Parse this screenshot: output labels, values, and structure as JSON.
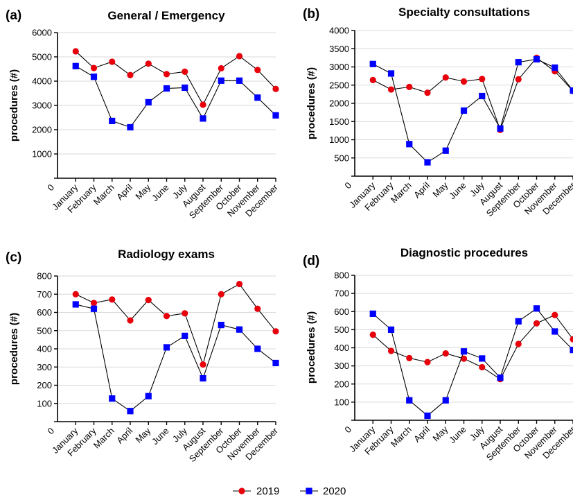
{
  "colors": {
    "series_2019": "#e8000b",
    "series_2020": "#0000ff",
    "axis": "#000000",
    "grid": "#d9d9d9"
  },
  "legend": {
    "items": [
      {
        "label": "2019",
        "marker": "circle",
        "color": "#e8000b"
      },
      {
        "label": "2020",
        "marker": "square",
        "color": "#0000ff"
      }
    ]
  },
  "chart_data": [
    {
      "type": "line",
      "panel": "(a)",
      "title": "General / Emergency",
      "ylabel": "procedures (#)",
      "xlabel": "",
      "ylim": [
        0,
        6000
      ],
      "yticks": [
        0,
        1000,
        2000,
        3000,
        4000,
        5000,
        6000
      ],
      "categories": [
        "January",
        "February",
        "March",
        "April",
        "May",
        "June",
        "July",
        "August",
        "September",
        "October",
        "November",
        "December"
      ],
      "series": [
        {
          "name": "2019",
          "values": [
            5230,
            4540,
            4800,
            4250,
            4720,
            4290,
            4390,
            3030,
            4530,
            5030,
            4460,
            3680
          ]
        },
        {
          "name": "2020",
          "values": [
            4620,
            4180,
            2360,
            2100,
            3130,
            3700,
            3730,
            2460,
            4020,
            4020,
            3320,
            2590
          ]
        }
      ]
    },
    {
      "type": "line",
      "panel": "(b)",
      "title": "Specialty consultations",
      "ylabel": "procedures (#)",
      "xlabel": "",
      "ylim": [
        0,
        4000
      ],
      "yticks": [
        0,
        500,
        1000,
        1500,
        2000,
        2500,
        3000,
        3500,
        4000
      ],
      "categories": [
        "January",
        "February",
        "March",
        "April",
        "May",
        "June",
        "July",
        "August",
        "September",
        "October",
        "November",
        "December"
      ],
      "series": [
        {
          "name": "2019",
          "values": [
            2640,
            2380,
            2450,
            2290,
            2710,
            2600,
            2670,
            1270,
            2660,
            3250,
            2880,
            2340
          ]
        },
        {
          "name": "2020",
          "values": [
            3080,
            2820,
            880,
            380,
            700,
            1800,
            2200,
            1310,
            3130,
            3210,
            2980,
            2350
          ]
        }
      ]
    },
    {
      "type": "line",
      "panel": "(c)",
      "title": "Radiology exams",
      "ylabel": "procedures (#)",
      "xlabel": "",
      "ylim": [
        0,
        800
      ],
      "yticks": [
        0,
        100,
        200,
        300,
        400,
        500,
        600,
        700,
        800
      ],
      "categories": [
        "January",
        "February",
        "March",
        "April",
        "May",
        "June",
        "July",
        "August",
        "September",
        "October",
        "November",
        "December"
      ],
      "series": [
        {
          "name": "2019",
          "values": [
            700,
            652,
            671,
            556,
            668,
            580,
            595,
            314,
            700,
            756,
            620,
            496
          ]
        },
        {
          "name": "2020",
          "values": [
            644,
            620,
            127,
            58,
            140,
            408,
            471,
            238,
            531,
            506,
            400,
            322
          ]
        }
      ]
    },
    {
      "type": "line",
      "panel": "(d)",
      "title": "Diagnostic procedures",
      "ylabel": "procedures (#)",
      "xlabel": "",
      "ylim": [
        0,
        800
      ],
      "yticks": [
        0,
        100,
        200,
        300,
        400,
        500,
        600,
        700,
        800
      ],
      "categories": [
        "January",
        "February",
        "March",
        "April",
        "May",
        "June",
        "July",
        "August",
        "September",
        "October",
        "November",
        "December"
      ],
      "series": [
        {
          "name": "2019",
          "values": [
            472,
            383,
            343,
            321,
            369,
            340,
            293,
            227,
            421,
            535,
            581,
            447
          ]
        },
        {
          "name": "2020",
          "values": [
            588,
            500,
            110,
            25,
            110,
            380,
            341,
            235,
            546,
            617,
            490,
            388
          ]
        }
      ]
    }
  ]
}
